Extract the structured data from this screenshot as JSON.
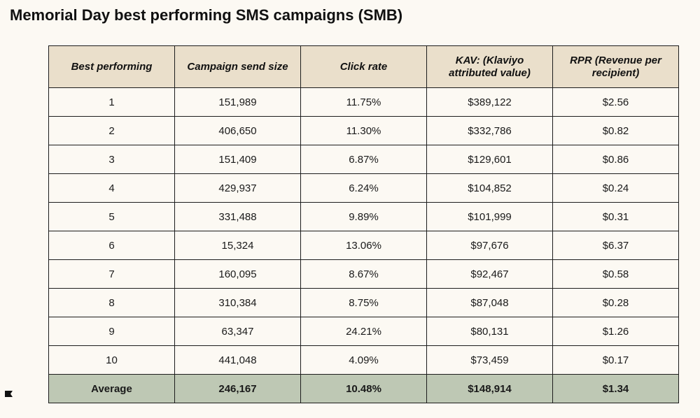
{
  "title": "Memorial Day best performing SMS campaigns (SMB)",
  "table": {
    "headers": [
      "Best performing",
      "Campaign send size",
      "Click rate",
      "KAV: (Klaviyo attributed value)",
      "RPR (Revenue per recipient)"
    ],
    "rows": [
      [
        "1",
        "151,989",
        "11.75%",
        "$389,122",
        "$2.56"
      ],
      [
        "2",
        "406,650",
        "11.30%",
        "$332,786",
        "$0.82"
      ],
      [
        "3",
        "151,409",
        "6.87%",
        "$129,601",
        "$0.86"
      ],
      [
        "4",
        "429,937",
        "6.24%",
        "$104,852",
        "$0.24"
      ],
      [
        "5",
        "331,488",
        "9.89%",
        "$101,999",
        "$0.31"
      ],
      [
        "6",
        "15,324",
        "13.06%",
        "$97,676",
        "$6.37"
      ],
      [
        "7",
        "160,095",
        "8.67%",
        "$92,467",
        "$0.58"
      ],
      [
        "8",
        "310,384",
        "8.75%",
        "$87,048",
        "$0.28"
      ],
      [
        "9",
        "63,347",
        "24.21%",
        "$80,131",
        "$1.26"
      ],
      [
        "10",
        "441,048",
        "4.09%",
        "$73,459",
        "$0.17"
      ]
    ],
    "average": [
      "Average",
      "246,167",
      "10.48%",
      "$148,914",
      "$1.34"
    ]
  },
  "colors": {
    "background": "#fcf9f3",
    "header_fill": "#eadfcb",
    "average_fill": "#bec8b4",
    "border": "#1c1c1c"
  },
  "icons": {
    "corner_mark": "flag-icon"
  }
}
